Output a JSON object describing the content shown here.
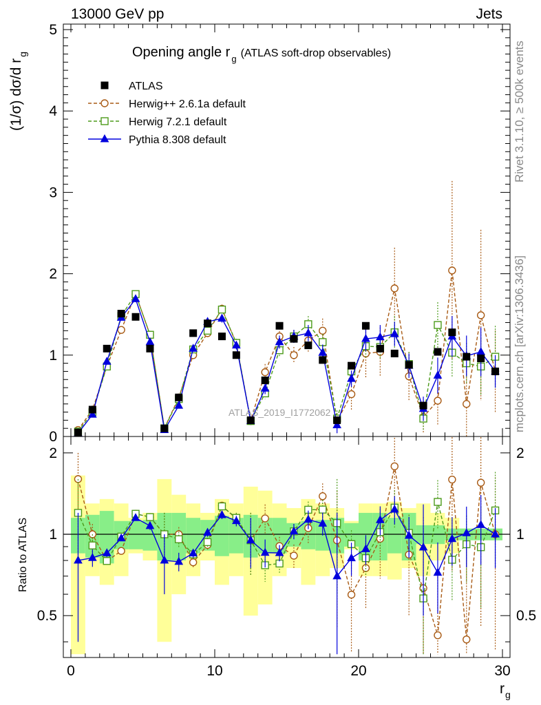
{
  "header": {
    "left": "13000 GeV pp",
    "right": "Jets"
  },
  "side": {
    "rivet": "Rivet 3.1.10, ≥ 500k events",
    "mcplots": "mcplots.cern.ch [arXiv:1306.3436]"
  },
  "watermark": "ATLAS_2019_I1772062",
  "chart_data": {
    "type": "scatter",
    "title_main": "Opening angle r",
    "title_sub": "g",
    "title_rest": "(ATLAS soft-drop observables)",
    "ylabel_main": "(1/σ) dσ/d r",
    "ylabel_sub": "g",
    "xlabel_main": "r",
    "xlabel_sub": "g",
    "ratio_ylabel": "Ratio to ATLAS",
    "xlim": [
      0,
      30
    ],
    "ylim": [
      0,
      5
    ],
    "ratio_ylim": [
      0.35,
      2.3
    ],
    "x_ticks": [
      "0",
      "10",
      "20",
      "30"
    ],
    "y_ticks": [
      "0",
      "1",
      "2",
      "3",
      "4",
      "5"
    ],
    "ratio_ticks": [
      "0.5",
      "1",
      "2"
    ],
    "x": [
      0.5,
      1.5,
      2.5,
      3.5,
      4.5,
      5.5,
      6.5,
      7.5,
      8.5,
      9.5,
      10.5,
      11.5,
      12.5,
      13.5,
      14.5,
      15.5,
      16.5,
      17.5,
      18.5,
      19.5,
      20.5,
      21.5,
      22.5,
      23.5,
      24.5,
      25.5,
      26.5,
      27.5,
      28.5,
      29.5
    ],
    "colors": {
      "data": "#000000",
      "herwigpp": "#a85a14",
      "herwig7": "#4c9a1a",
      "pythia": "#0000dd",
      "band_outer": "#ffff99",
      "band_inner": "#88ee88"
    },
    "data": {
      "name": "ATLAS",
      "values": [
        0.05,
        0.33,
        1.08,
        1.51,
        1.47,
        1.08,
        0.1,
        0.48,
        1.27,
        1.39,
        1.23,
        1.0,
        0.2,
        0.69,
        1.36,
        1.2,
        1.12,
        0.94,
        0.2,
        0.87,
        1.36,
        1.08,
        1.02,
        0.88,
        0.38,
        1.04,
        1.28,
        0.98,
        0.96,
        0.8
      ],
      "band_outer": [
        0.65,
        0.3,
        0.35,
        0.3,
        0.15,
        0.2,
        0.6,
        0.4,
        0.3,
        0.2,
        0.35,
        0.3,
        0.5,
        0.45,
        0.3,
        0.25,
        0.35,
        0.3,
        0.25,
        0.12,
        0.3,
        0.3,
        0.32,
        0.25,
        0.3,
        0.2,
        0.15,
        0.05,
        0.05,
        0.05
      ],
      "band_inner": [
        0.15,
        0.18,
        0.22,
        0.12,
        0.12,
        0.13,
        0.2,
        0.2,
        0.15,
        0.13,
        0.17,
        0.15,
        0.18,
        0.15,
        0.15,
        0.1,
        0.12,
        0.13,
        0.15,
        0.1,
        0.2,
        0.2,
        0.15,
        0.2,
        0.08,
        0.08,
        0.05,
        0.05,
        0.05,
        0.05
      ]
    },
    "series": [
      {
        "name": "Herwig++ 2.6.1a default",
        "key": "herwigpp",
        "marker": "circle",
        "dash": "5,3",
        "values": [
          0.08,
          0.33,
          0.86,
          1.31,
          1.75,
          1.25,
          0.1,
          0.48,
          1.0,
          1.27,
          1.57,
          1.14,
          0.19,
          0.79,
          1.23,
          1.0,
          1.18,
          1.3,
          0.19,
          0.52,
          1.02,
          1.04,
          1.82,
          0.74,
          0.24,
          0.44,
          2.04,
          0.4,
          1.49,
          0.8
        ],
        "errors": [
          0.02,
          0.03,
          0.03,
          0.03,
          0.04,
          0.04,
          0.02,
          0.03,
          0.04,
          0.05,
          0.05,
          0.06,
          0.05,
          0.1,
          0.1,
          0.1,
          0.15,
          0.15,
          0.1,
          0.2,
          0.3,
          0.3,
          0.5,
          0.3,
          0.2,
          0.3,
          1.1,
          0.5,
          1.05,
          0.5
        ]
      },
      {
        "name": "Herwig 7.2.1 default",
        "key": "herwig7",
        "marker": "square",
        "dash": "5,3",
        "values": [
          0.06,
          0.3,
          0.86,
          1.48,
          1.75,
          1.25,
          0.1,
          0.46,
          1.07,
          1.3,
          1.56,
          1.15,
          0.19,
          0.53,
          1.06,
          1.23,
          1.38,
          1.16,
          0.22,
          0.8,
          1.11,
          1.1,
          1.28,
          0.89,
          0.22,
          1.37,
          1.03,
          0.9,
          0.86,
          0.98
        ],
        "errors": [
          0.02,
          0.03,
          0.03,
          0.04,
          0.04,
          0.04,
          0.02,
          0.03,
          0.04,
          0.05,
          0.05,
          0.05,
          0.05,
          0.07,
          0.08,
          0.08,
          0.1,
          0.1,
          0.1,
          0.1,
          0.15,
          0.15,
          0.2,
          0.15,
          0.15,
          0.28,
          0.3,
          0.25,
          0.35,
          0.38
        ]
      },
      {
        "name": "Pythia 8.308 default",
        "key": "pythia",
        "marker": "triangle",
        "dash": "",
        "values": [
          0.04,
          0.27,
          0.92,
          1.46,
          1.69,
          1.16,
          0.08,
          0.38,
          1.08,
          1.41,
          1.45,
          1.12,
          0.19,
          0.59,
          1.16,
          1.23,
          1.27,
          1.03,
          0.14,
          0.71,
          1.2,
          1.22,
          1.26,
          0.87,
          0.34,
          0.75,
          1.23,
          0.99,
          1.04,
          0.8
        ],
        "errors": [
          0.02,
          0.02,
          0.03,
          0.03,
          0.04,
          0.04,
          0.02,
          0.03,
          0.04,
          0.05,
          0.05,
          0.05,
          0.04,
          0.07,
          0.08,
          0.08,
          0.1,
          0.1,
          0.1,
          0.1,
          0.15,
          0.15,
          0.15,
          0.15,
          0.15,
          0.22,
          0.25,
          0.25,
          0.3,
          0.2
        ]
      }
    ]
  }
}
